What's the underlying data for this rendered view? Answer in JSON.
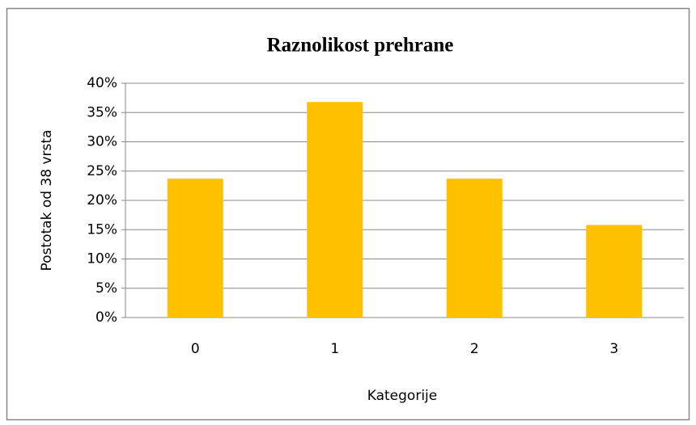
{
  "chart_data": {
    "type": "bar",
    "title": "Raznolikost prehrane",
    "xlabel": "Kategorije",
    "ylabel": "Postotak od 38 vrsta",
    "categories": [
      "0",
      "1",
      "2",
      "3"
    ],
    "values": [
      23.7,
      36.8,
      23.7,
      15.8
    ],
    "color": "#ffc000",
    "ylim": [
      0,
      40
    ],
    "yticks": [
      {
        "value": 0,
        "label": "0%"
      },
      {
        "value": 5,
        "label": "5%"
      },
      {
        "value": 10,
        "label": "10%"
      },
      {
        "value": 15,
        "label": "15%"
      },
      {
        "value": 20,
        "label": "20%"
      },
      {
        "value": 25,
        "label": "25%"
      },
      {
        "value": 30,
        "label": "30%"
      },
      {
        "value": 35,
        "label": "35%"
      },
      {
        "value": 40,
        "label": "40%"
      }
    ],
    "grid": true
  }
}
